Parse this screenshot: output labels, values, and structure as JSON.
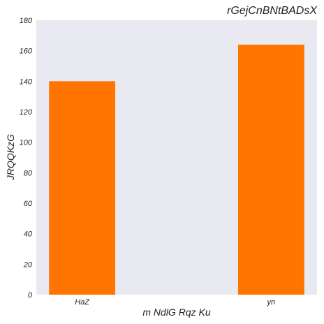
{
  "chart_data": {
    "type": "bar",
    "title": "rGejCnBNtBADsX",
    "xlabel": "m NdlG Rqz Ku",
    "ylabel": "JRQQKzG",
    "categories": [
      "HaZ",
      "yn"
    ],
    "values": [
      140,
      164
    ],
    "ylim": [
      0,
      180
    ],
    "yticks": [
      0,
      20,
      40,
      60,
      80,
      100,
      120,
      140,
      160,
      180
    ],
    "grid": false,
    "bar_color": "#ff7500",
    "plot_background": "#e9e9f1"
  }
}
